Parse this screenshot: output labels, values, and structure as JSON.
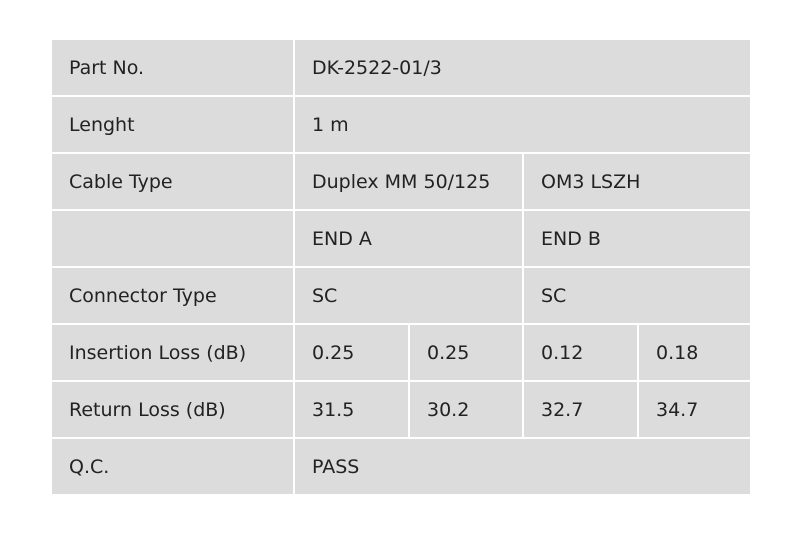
{
  "table": {
    "rows": [
      [
        "Part No.",
        "DK-2522-01/3"
      ],
      [
        "Lenght",
        "1 m"
      ],
      [
        "Cable Type",
        "Duplex MM 50/125",
        "OM3 LSZH"
      ],
      [
        null,
        "END A",
        "END B"
      ],
      [
        "Connector Type",
        "SC",
        "SC"
      ],
      [
        "Insertion Loss (dB)",
        "0.25",
        "0.25",
        "0.12",
        "0.18"
      ],
      [
        "Return Loss (dB)",
        "31.5",
        "30.2",
        "32.7",
        "34.7"
      ],
      [
        "Q.C.",
        "PASS"
      ]
    ]
  }
}
